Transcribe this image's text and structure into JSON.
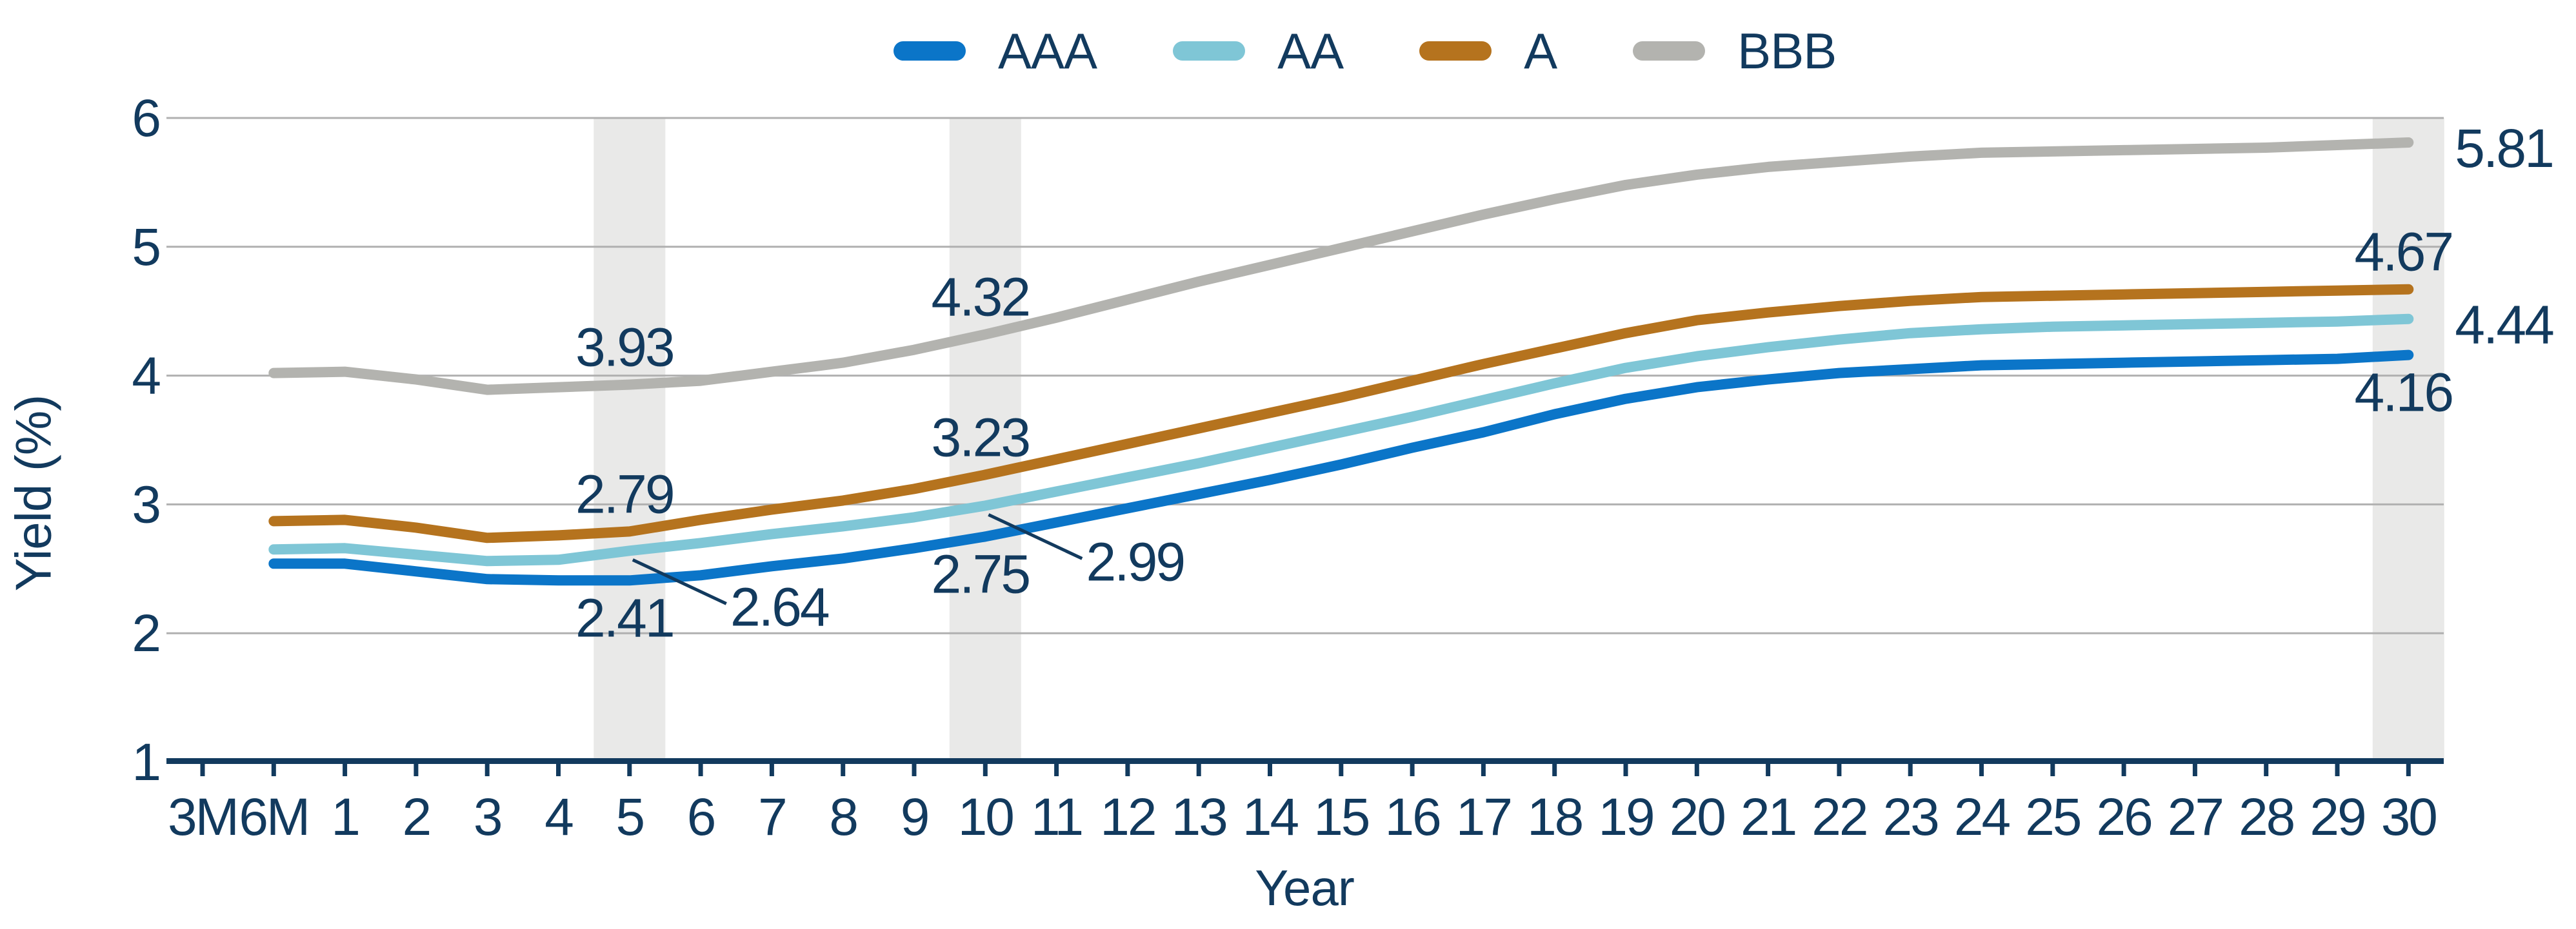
{
  "legend": {
    "items": [
      {
        "label": "AAA",
        "color": "#0b75c8"
      },
      {
        "label": "AA",
        "color": "#7fc6d6"
      },
      {
        "label": "A",
        "color": "#b5731e"
      },
      {
        "label": "BBB",
        "color": "#b3b3af"
      }
    ]
  },
  "chart_data": {
    "type": "line",
    "title": "",
    "xlabel": "Year",
    "ylabel": "Yield (%)",
    "ylim": [
      1,
      6
    ],
    "y_ticks": [
      1,
      2,
      3,
      4,
      5,
      6
    ],
    "grid": true,
    "legend_position": "top-center",
    "categories": [
      "3M",
      "6M",
      "1",
      "2",
      "3",
      "4",
      "5",
      "6",
      "7",
      "8",
      "9",
      "10",
      "11",
      "12",
      "13",
      "14",
      "15",
      "16",
      "17",
      "18",
      "19",
      "20",
      "21",
      "22",
      "23",
      "24",
      "25",
      "26",
      "27",
      "28",
      "29",
      "30"
    ],
    "highlight_bands": [
      "5",
      "10",
      "30"
    ],
    "colors": {
      "text": "#123a5e",
      "axis": "#123a5e",
      "grid": "#b0b0b0",
      "band": "#e9e9e8"
    },
    "series": [
      {
        "name": "BBB",
        "color": "#b3b3af",
        "values": [
          null,
          4.02,
          4.03,
          3.97,
          3.89,
          3.91,
          3.93,
          3.96,
          4.03,
          4.1,
          4.2,
          4.32,
          4.45,
          4.59,
          4.73,
          4.86,
          4.99,
          5.12,
          5.25,
          5.37,
          5.48,
          5.56,
          5.62,
          5.66,
          5.7,
          5.73,
          5.74,
          5.75,
          5.76,
          5.77,
          5.79,
          5.81
        ]
      },
      {
        "name": "A",
        "color": "#b5731e",
        "values": [
          null,
          2.87,
          2.88,
          2.82,
          2.74,
          2.76,
          2.79,
          2.88,
          2.96,
          3.03,
          3.12,
          3.23,
          3.35,
          3.47,
          3.59,
          3.71,
          3.83,
          3.96,
          4.09,
          4.21,
          4.33,
          4.43,
          4.49,
          4.54,
          4.58,
          4.61,
          4.62,
          4.63,
          4.64,
          4.65,
          4.66,
          4.67
        ]
      },
      {
        "name": "AA",
        "color": "#7fc6d6",
        "values": [
          null,
          2.65,
          2.66,
          2.61,
          2.56,
          2.57,
          2.64,
          2.7,
          2.77,
          2.83,
          2.9,
          2.99,
          3.1,
          3.21,
          3.32,
          3.44,
          3.56,
          3.68,
          3.81,
          3.94,
          4.06,
          4.15,
          4.22,
          4.28,
          4.33,
          4.36,
          4.38,
          4.39,
          4.4,
          4.41,
          4.42,
          4.44
        ]
      },
      {
        "name": "AAA",
        "color": "#0b75c8",
        "values": [
          null,
          2.54,
          2.54,
          2.48,
          2.42,
          2.41,
          2.41,
          2.45,
          2.52,
          2.58,
          2.66,
          2.75,
          2.86,
          2.97,
          3.08,
          3.19,
          3.31,
          3.44,
          3.56,
          3.7,
          3.82,
          3.91,
          3.97,
          4.02,
          4.05,
          4.08,
          4.09,
          4.1,
          4.11,
          4.12,
          4.13,
          4.16
        ]
      }
    ],
    "callouts": [
      {
        "series": "BBB",
        "category": "5",
        "text": "3.93",
        "placement": "above"
      },
      {
        "series": "A",
        "category": "5",
        "text": "2.79",
        "placement": "above"
      },
      {
        "series": "AAA",
        "category": "5",
        "text": "2.41",
        "placement": "below"
      },
      {
        "series": "AA",
        "category": "5",
        "text": "2.64",
        "placement": "leader"
      },
      {
        "series": "BBB",
        "category": "10",
        "text": "4.32",
        "placement": "above"
      },
      {
        "series": "A",
        "category": "10",
        "text": "3.23",
        "placement": "above"
      },
      {
        "series": "AAA",
        "category": "10",
        "text": "2.75",
        "placement": "below"
      },
      {
        "series": "AA",
        "category": "10",
        "text": "2.99",
        "placement": "leader"
      },
      {
        "series": "BBB",
        "category": "30",
        "text": "5.81",
        "placement": "right"
      },
      {
        "series": "A",
        "category": "30",
        "text": "4.67",
        "placement": "above"
      },
      {
        "series": "AA",
        "category": "30",
        "text": "4.44",
        "placement": "right"
      },
      {
        "series": "AAA",
        "category": "30",
        "text": "4.16",
        "placement": "below"
      }
    ]
  }
}
